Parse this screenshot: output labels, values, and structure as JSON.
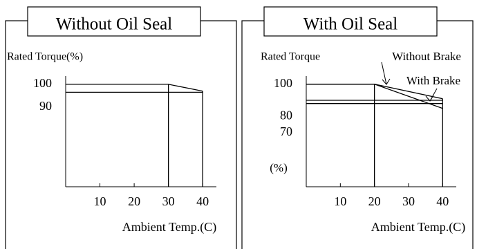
{
  "chart_data": [
    {
      "type": "line",
      "title": "Without Oil Seal",
      "ylabel": "Rated Torque(%)",
      "xlabel": "Ambient Temp.(C)",
      "xlim": [
        0,
        44
      ],
      "ylim": [
        55,
        103.6
      ],
      "xticks": [
        10,
        20,
        30,
        40
      ],
      "yticks": [
        100,
        90
      ],
      "series": [
        {
          "color": "#000000",
          "x": [
            0,
            30,
            40
          ],
          "values": [
            100,
            100,
            97
          ]
        },
        {
          "color": "#000000",
          "x": [
            0,
            40
          ],
          "values": [
            96.5,
            96.5
          ]
        }
      ]
    },
    {
      "type": "line",
      "title": "With Oil Seal",
      "ylabel": "Rated Torque",
      "xlabel": "Ambient Temp.(C)",
      "annotations": [
        "Without Brake",
        "With Brake",
        "(%)"
      ],
      "xlim": [
        0,
        44
      ],
      "ylim": [
        36.5,
        105
      ],
      "xticks": [
        10,
        20,
        30,
        40
      ],
      "yticks": [
        100,
        80,
        70
      ],
      "series": [
        {
          "name": "Without Brake",
          "color": "#000000",
          "x": [
            0,
            20,
            40
          ],
          "values": [
            100,
            100,
            91
          ]
        },
        {
          "name": "With Brake",
          "color": "#000000",
          "x": [
            0,
            20,
            40
          ],
          "values": [
            100,
            100,
            85
          ]
        },
        {
          "color": "#000000",
          "x": [
            0,
            40
          ],
          "values": [
            90,
            90
          ]
        },
        {
          "color": "#000000",
          "x": [
            0,
            40
          ],
          "values": [
            88,
            88
          ]
        }
      ]
    }
  ]
}
